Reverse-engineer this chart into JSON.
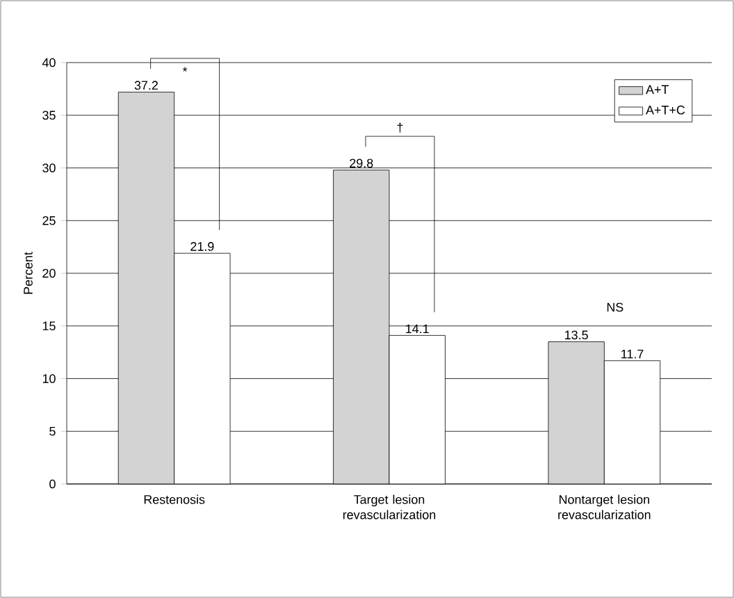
{
  "chart_data": {
    "type": "bar",
    "ylabel": "Percent",
    "categories": [
      "Restenosis",
      "Target lesion revascularization",
      "Nontarget lesion revascularization"
    ],
    "series": [
      {
        "name": "A+T",
        "color": "#d3d3d3",
        "values": [
          37.2,
          29.8,
          13.5
        ]
      },
      {
        "name": "A+T+C",
        "color": "#ffffff",
        "values": [
          21.9,
          14.1,
          11.7
        ]
      }
    ],
    "ylim": [
      0,
      40
    ],
    "yticks": [
      0,
      5,
      10,
      15,
      20,
      25,
      30,
      35,
      40
    ],
    "grid": "y",
    "legend": "top right",
    "data_labels": true,
    "annotations": [
      "*",
      "†",
      "NS"
    ]
  }
}
